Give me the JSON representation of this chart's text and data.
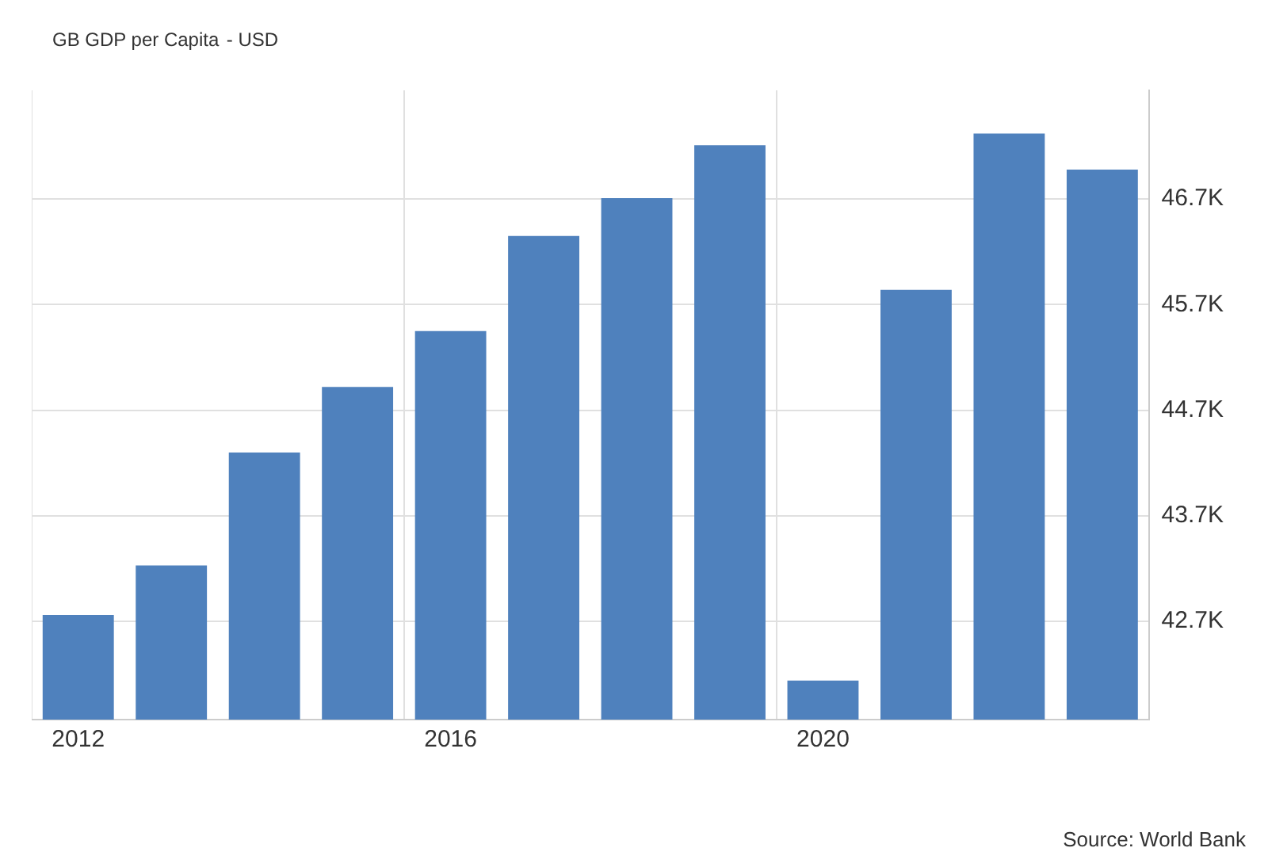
{
  "chart_data": {
    "type": "bar",
    "title": "GB GDP per Capita",
    "subtitle": "- USD",
    "categories": [
      "2012",
      null,
      null,
      null,
      "2016",
      null,
      null,
      null,
      "2020",
      null,
      null,
      null
    ],
    "values": [
      42760,
      43230,
      44300,
      44920,
      45450,
      46350,
      46710,
      47210,
      42140,
      45840,
      47320,
      46980
    ],
    "color": "#4f81bd",
    "ylim": [
      41770,
      47730
    ],
    "yticks": [
      {
        "value": 42700,
        "label": "42.7K"
      },
      {
        "value": 43700,
        "label": "43.7K"
      },
      {
        "value": 44700,
        "label": "44.7K"
      },
      {
        "value": 45700,
        "label": "45.7K"
      },
      {
        "value": 46700,
        "label": "46.7K"
      }
    ],
    "grid": true,
    "legend": false,
    "annotations": [
      "Source: World Bank"
    ]
  }
}
